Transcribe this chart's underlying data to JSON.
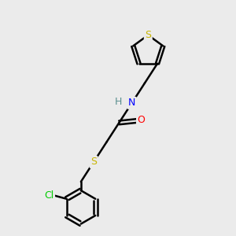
{
  "background_color": "#ebebeb",
  "atom_colors": {
    "S": "#c8b400",
    "N": "#0000ff",
    "O": "#ff0000",
    "Cl": "#00cc00",
    "C": "#000000",
    "H": "#5a8f8f"
  },
  "bond_color": "#000000",
  "bond_width": 1.8,
  "figsize": [
    3.0,
    3.0
  ],
  "dpi": 100
}
